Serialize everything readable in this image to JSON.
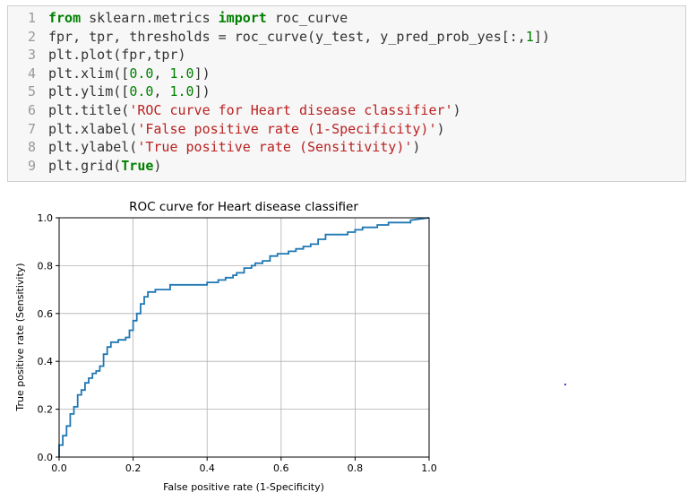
{
  "code_cell": {
    "lines": [
      {
        "number": "1",
        "parts": [
          {
            "t": "from",
            "c": "kw"
          },
          {
            "t": " sklearn.metrics "
          },
          {
            "t": "import",
            "c": "kw"
          },
          {
            "t": " roc_curve"
          }
        ]
      },
      {
        "number": "2",
        "parts": [
          {
            "t": "fpr, tpr, thresholds = roc_curve(y_test, y_pred_prob_yes[:,"
          },
          {
            "t": "1",
            "c": "num"
          },
          {
            "t": "])"
          }
        ]
      },
      {
        "number": "3",
        "parts": [
          {
            "t": "plt.plot(fpr,tpr)"
          }
        ]
      },
      {
        "number": "4",
        "parts": [
          {
            "t": "plt.xlim(["
          },
          {
            "t": "0.0",
            "c": "num"
          },
          {
            "t": ", "
          },
          {
            "t": "1.0",
            "c": "num"
          },
          {
            "t": "])"
          }
        ]
      },
      {
        "number": "5",
        "parts": [
          {
            "t": "plt.ylim(["
          },
          {
            "t": "0.0",
            "c": "num"
          },
          {
            "t": ", "
          },
          {
            "t": "1.0",
            "c": "num"
          },
          {
            "t": "])"
          }
        ]
      },
      {
        "number": "6",
        "parts": [
          {
            "t": "plt.title("
          },
          {
            "t": "'ROC curve for Heart disease classifier'",
            "c": "str"
          },
          {
            "t": ")"
          }
        ]
      },
      {
        "number": "7",
        "parts": [
          {
            "t": "plt.xlabel("
          },
          {
            "t": "'False positive rate (1-Specificity)'",
            "c": "str"
          },
          {
            "t": ")"
          }
        ]
      },
      {
        "number": "8",
        "parts": [
          {
            "t": "plt.ylabel("
          },
          {
            "t": "'True positive rate (Sensitivity)'",
            "c": "str"
          },
          {
            "t": ")"
          }
        ]
      },
      {
        "number": "9",
        "parts": [
          {
            "t": "plt.grid("
          },
          {
            "t": "True",
            "c": "kw"
          },
          {
            "t": ")"
          }
        ]
      }
    ]
  },
  "colors": {
    "line": "#1f77b4",
    "grid": "#b0b0b0",
    "axis": "#000000"
  },
  "chart_data": {
    "type": "line",
    "title": "ROC curve for Heart disease classifier",
    "xlabel": "False positive rate (1-Specificity)",
    "ylabel": "True positive rate (Sensitivity)",
    "xlim": [
      0.0,
      1.0
    ],
    "ylim": [
      0.0,
      1.0
    ],
    "grid": true,
    "xticks": [
      "0.0",
      "0.2",
      "0.4",
      "0.6",
      "0.8",
      "1.0"
    ],
    "yticks": [
      "0.0",
      "0.2",
      "0.4",
      "0.6",
      "0.8",
      "1.0"
    ],
    "series": [
      {
        "x": [
          0.0,
          0.0,
          0.01,
          0.01,
          0.02,
          0.02,
          0.03,
          0.03,
          0.04,
          0.04,
          0.05,
          0.05,
          0.06,
          0.06,
          0.07,
          0.07,
          0.08,
          0.08,
          0.09,
          0.09,
          0.1,
          0.1,
          0.11,
          0.11,
          0.12,
          0.12,
          0.13,
          0.13,
          0.14,
          0.14,
          0.15,
          0.15,
          0.16,
          0.16,
          0.18,
          0.18,
          0.19,
          0.19,
          0.2,
          0.2,
          0.21,
          0.21,
          0.22,
          0.22,
          0.23,
          0.23,
          0.24,
          0.24,
          0.26,
          0.26,
          0.3,
          0.3,
          0.4,
          0.4,
          0.43,
          0.43,
          0.45,
          0.45,
          0.47,
          0.47,
          0.48,
          0.48,
          0.5,
          0.5,
          0.52,
          0.52,
          0.53,
          0.53,
          0.55,
          0.55,
          0.57,
          0.57,
          0.59,
          0.59,
          0.62,
          0.62,
          0.64,
          0.64,
          0.66,
          0.66,
          0.68,
          0.68,
          0.7,
          0.7,
          0.72,
          0.72,
          0.78,
          0.78,
          0.8,
          0.8,
          0.82,
          0.82,
          0.86,
          0.86,
          0.89,
          0.89,
          0.95,
          0.95,
          1.0
        ],
        "y": [
          0.0,
          0.05,
          0.05,
          0.09,
          0.09,
          0.13,
          0.13,
          0.18,
          0.18,
          0.21,
          0.21,
          0.26,
          0.26,
          0.28,
          0.28,
          0.31,
          0.31,
          0.33,
          0.33,
          0.35,
          0.35,
          0.36,
          0.36,
          0.38,
          0.38,
          0.43,
          0.43,
          0.46,
          0.46,
          0.48,
          0.48,
          0.48,
          0.48,
          0.49,
          0.49,
          0.5,
          0.5,
          0.53,
          0.53,
          0.57,
          0.57,
          0.6,
          0.6,
          0.64,
          0.64,
          0.67,
          0.67,
          0.69,
          0.69,
          0.7,
          0.7,
          0.72,
          0.72,
          0.73,
          0.73,
          0.74,
          0.74,
          0.75,
          0.75,
          0.76,
          0.76,
          0.77,
          0.77,
          0.79,
          0.79,
          0.8,
          0.8,
          0.81,
          0.81,
          0.82,
          0.82,
          0.84,
          0.84,
          0.85,
          0.85,
          0.86,
          0.86,
          0.87,
          0.87,
          0.88,
          0.88,
          0.89,
          0.89,
          0.91,
          0.91,
          0.93,
          0.93,
          0.94,
          0.94,
          0.95,
          0.95,
          0.96,
          0.96,
          0.97,
          0.97,
          0.98,
          0.98,
          0.99,
          1.0
        ]
      }
    ]
  }
}
